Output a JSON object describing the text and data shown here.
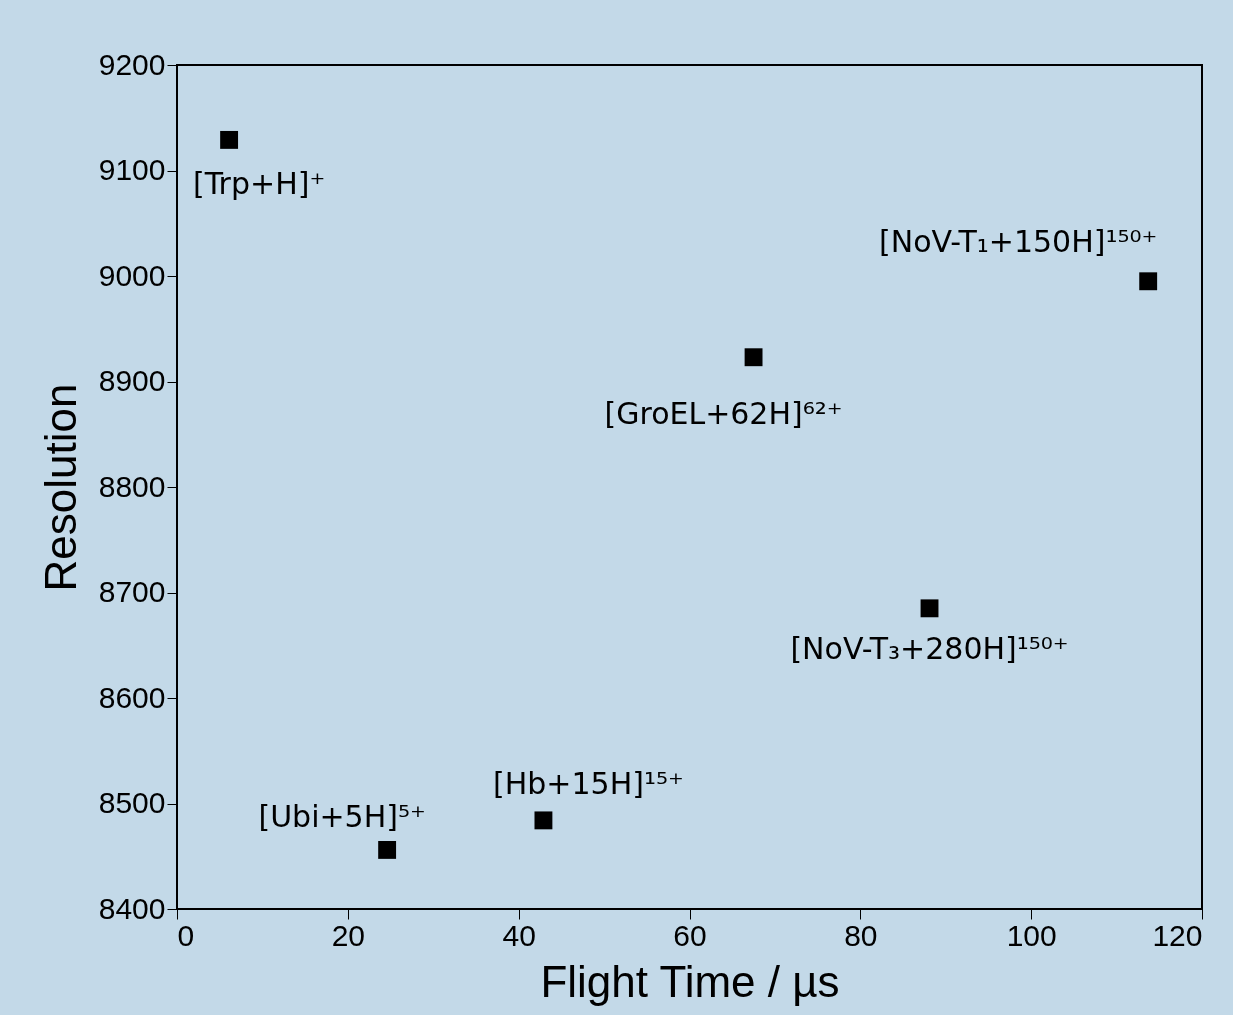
{
  "chart_data": {
    "type": "scatter",
    "xlabel": "Flight Time / µs",
    "ylabel": "Resolution",
    "x": [
      6.1,
      24.6,
      42.9,
      67.5,
      88.1,
      113.7
    ],
    "series": [
      {
        "color": "#000000",
        "values": [
          9129,
          8456,
          8484,
          8923,
          8685,
          8995
        ]
      }
    ],
    "marker": "square",
    "xlim": [
      0,
      120
    ],
    "ylim": [
      8400,
      9200
    ],
    "xticks": [
      0,
      20,
      40,
      60,
      80,
      100,
      120
    ],
    "yticks": [
      8400,
      8500,
      8600,
      8700,
      8800,
      8900,
      9000,
      9100,
      9200
    ],
    "grid": false,
    "annotations": [
      {
        "text": "[Trp+H]⁺",
        "x": 6.1,
        "y": 9129
      },
      {
        "text": "[Ubi+5H]⁵⁺",
        "x": 24.6,
        "y": 8456
      },
      {
        "text": "[Hb+15H]¹⁵⁺",
        "x": 42.9,
        "y": 8484
      },
      {
        "text": "[GroEL+62H]⁶²⁺",
        "x": 67.5,
        "y": 8923
      },
      {
        "text": "[NoV-T₃+280H]¹⁵⁰⁺",
        "x": 88.1,
        "y": 8685
      },
      {
        "text": "[NoV-T₁+150H]¹⁵⁰⁺",
        "x": 113.7,
        "y": 8995
      }
    ]
  }
}
